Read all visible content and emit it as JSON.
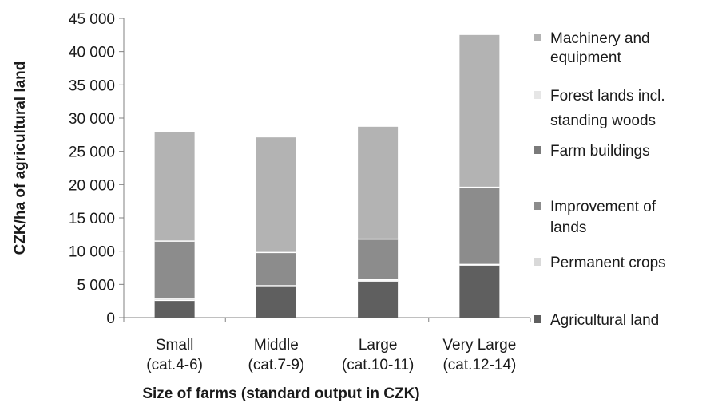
{
  "chart_data": {
    "type": "bar",
    "stacked": true,
    "categories": [
      [
        "Small",
        "(cat.4-6)"
      ],
      [
        "Middle",
        "(cat.7-9)"
      ],
      [
        "Large",
        "(cat.10-11)"
      ],
      [
        "Very Large",
        "(cat.12-14)"
      ]
    ],
    "ylabel": "CZK/ha of agricultural land",
    "xlabel": "Size of farms (standard output in CZK)",
    "ylim": [
      0,
      45000
    ],
    "yticks": [
      "0",
      "5 000",
      "10 000",
      "15 000",
      "20 000",
      "25 000",
      "30 000",
      "35 000",
      "40 000",
      "45 000"
    ],
    "grid": false,
    "legend_position": "right",
    "series": [
      {
        "name": [
          "Agricultural land"
        ],
        "color": "#5f5f5f",
        "values": [
          2600,
          4700,
          5500,
          7900
        ]
      },
      {
        "name": [
          "Permanent crops"
        ],
        "color": "#d9d9d9",
        "values": [
          300,
          100,
          200,
          100
        ]
      },
      {
        "name": [
          "Improvement of",
          "lands"
        ],
        "color": "#8c8c8c",
        "values": [
          8600,
          5000,
          6100,
          11600
        ]
      },
      {
        "name": [
          "Farm buildings"
        ],
        "color": "#7a7a7a",
        "values": [
          0,
          0,
          0,
          0
        ]
      },
      {
        "name": [
          "Forest lands incl.",
          "standing woods"
        ],
        "color": "#e6e6e6",
        "values": [
          0,
          0,
          0,
          0
        ]
      },
      {
        "name": [
          "Machinery and",
          "equipment"
        ],
        "color": "#b3b3b3",
        "values": [
          16400,
          17300,
          16900,
          22900
        ]
      }
    ]
  }
}
